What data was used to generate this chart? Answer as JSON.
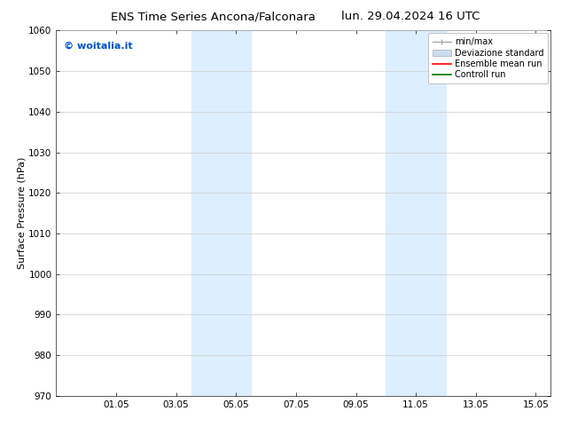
{
  "title_left": "ENS Time Series Ancona/Falconara",
  "title_right": "lun. 29.04.2024 16 UTC",
  "ylabel": "Surface Pressure (hPa)",
  "ylim": [
    970,
    1060
  ],
  "yticks": [
    970,
    980,
    990,
    1000,
    1010,
    1020,
    1030,
    1040,
    1050,
    1060
  ],
  "xlim": [
    0,
    16.5
  ],
  "xtick_labels": [
    "01.05",
    "03.05",
    "05.05",
    "07.05",
    "09.05",
    "11.05",
    "13.05",
    "15.05"
  ],
  "xtick_positions": [
    2,
    4,
    6,
    8,
    10,
    12,
    14,
    16
  ],
  "shaded_regions": [
    {
      "x_start": 4.5,
      "x_end": 6.5
    },
    {
      "x_start": 11.0,
      "x_end": 13.0
    }
  ],
  "shaded_color": "#ddeeff",
  "background_color": "#ffffff",
  "watermark_text": "© woitalia.it",
  "watermark_color": "#0055cc",
  "legend_entries": [
    "min/max",
    "Deviazione standard",
    "Ensemble mean run",
    "Controll run"
  ],
  "minmax_color": "#aaaaaa",
  "dev_std_color": "#ccddf0",
  "ensemble_color": "#ff0000",
  "control_color": "#007700",
  "title_fontsize": 9.5,
  "axis_label_fontsize": 8,
  "tick_fontsize": 7.5,
  "legend_fontsize": 7,
  "watermark_fontsize": 8
}
